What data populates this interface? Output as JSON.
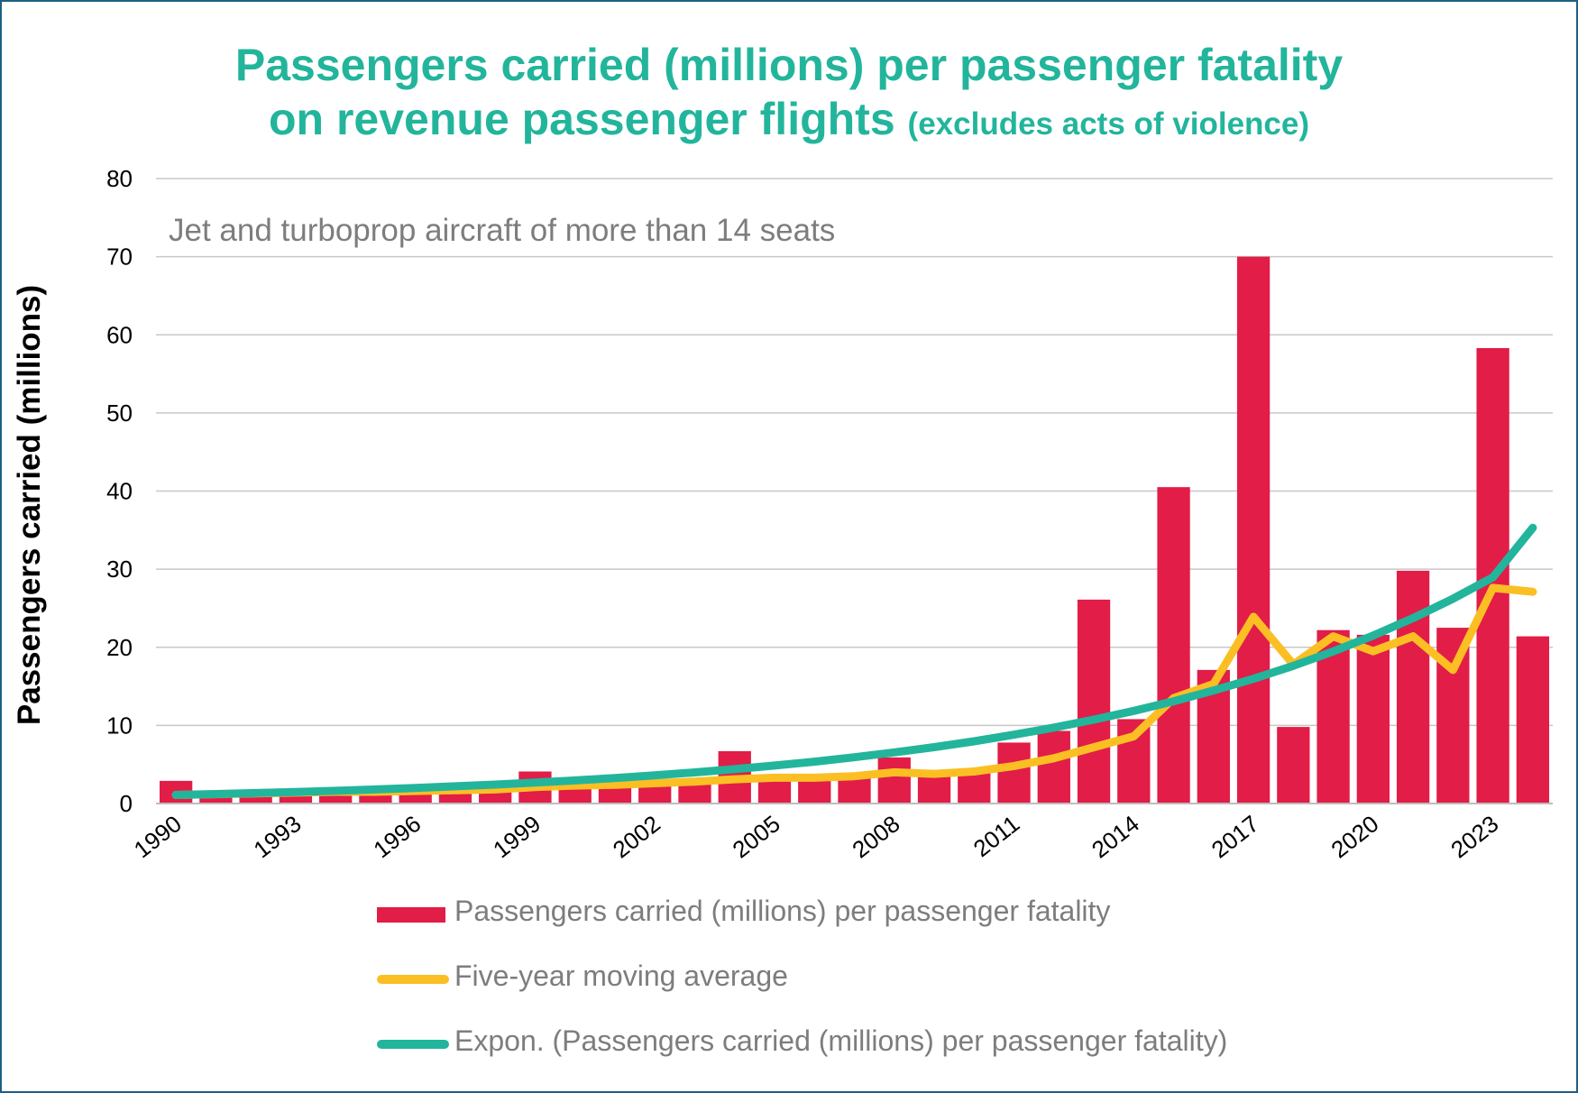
{
  "title": {
    "line1": "Passengers carried (millions) per passenger fatality",
    "line2_main": "on revenue passenger flights",
    "line2_sub": "(excludes acts of violence)"
  },
  "subtitle": "Jet and turboprop aircraft of more than 14 seats",
  "colors": {
    "bar": "#e11d48",
    "moving_average": "#fbbf24",
    "trend": "#22b59c",
    "title": "#22b59c"
  },
  "chart_data": {
    "type": "bar",
    "ylabel": "Passengers carried (millions)",
    "ylim": [
      0,
      80
    ],
    "yticks": [
      0,
      10,
      20,
      30,
      40,
      50,
      60,
      70,
      80
    ],
    "grid": true,
    "legend_position": "bottom",
    "categories": [
      "1990",
      "1991",
      "1992",
      "1993",
      "1994",
      "1995",
      "1996",
      "1997",
      "1998",
      "1999",
      "2000",
      "2001",
      "2002",
      "2003",
      "2004",
      "2005",
      "2006",
      "2007",
      "2008",
      "2009",
      "2010",
      "2011",
      "2012",
      "2013",
      "2014",
      "2015",
      "2016",
      "2017",
      "2018",
      "2019",
      "2020",
      "2021",
      "2022",
      "2023",
      "2024"
    ],
    "tick_labels": [
      "1990",
      "1993",
      "1996",
      "1999",
      "2002",
      "2005",
      "2008",
      "2011",
      "2014",
      "2017",
      "2020",
      "2023"
    ],
    "series": [
      {
        "name": "Passengers carried (millions) per passenger fatality",
        "type": "bar",
        "values": [
          2.9,
          1.2,
          1.3,
          1.6,
          1.5,
          1.6,
          1.7,
          1.8,
          2.0,
          4.1,
          2.3,
          2.4,
          2.5,
          3.0,
          6.7,
          3.5,
          3.6,
          3.6,
          5.9,
          3.8,
          4.0,
          7.8,
          9.3,
          26.1,
          10.8,
          40.5,
          17.1,
          70.0,
          9.8,
          22.2,
          21.6,
          29.8,
          22.5,
          58.3,
          21.4
        ]
      },
      {
        "name": "Five-year moving average",
        "type": "line",
        "values": [
          1.1,
          1.2,
          1.3,
          1.4,
          1.5,
          1.5,
          1.6,
          1.7,
          1.8,
          2.1,
          2.3,
          2.4,
          2.6,
          2.8,
          3.1,
          3.3,
          3.3,
          3.5,
          4.0,
          3.8,
          4.1,
          4.8,
          5.8,
          7.2,
          8.6,
          13.5,
          15.3,
          23.9,
          17.8,
          21.4,
          19.5,
          21.4,
          17.1,
          27.6,
          27.1
        ]
      },
      {
        "name": "Expon. (Passengers carried (millions) per passenger fatality)",
        "type": "line",
        "values": [
          1.1,
          1.21,
          1.34,
          1.48,
          1.63,
          1.8,
          1.99,
          2.2,
          2.43,
          2.68,
          2.96,
          3.27,
          3.61,
          3.98,
          4.4,
          4.86,
          5.36,
          5.92,
          6.54,
          7.22,
          7.97,
          8.81,
          9.72,
          10.74,
          11.86,
          13.09,
          14.46,
          15.97,
          17.63,
          19.47,
          21.5,
          23.74,
          26.22,
          28.95,
          35.3
        ]
      }
    ]
  }
}
